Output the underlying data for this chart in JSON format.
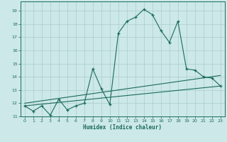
{
  "title": "",
  "xlabel": "Humidex (Indice chaleur)",
  "ylabel": "",
  "background_color": "#cce8e8",
  "grid_color": "#aacccc",
  "line_color": "#1a6b5a",
  "xlim": [
    -0.5,
    23.5
  ],
  "ylim": [
    11,
    19.7
  ],
  "yticks": [
    11,
    12,
    13,
    14,
    15,
    16,
    17,
    18,
    19
  ],
  "xticks": [
    0,
    1,
    2,
    3,
    4,
    5,
    6,
    7,
    8,
    9,
    10,
    11,
    12,
    13,
    14,
    15,
    16,
    17,
    18,
    19,
    20,
    21,
    22,
    23
  ],
  "curve1_x": [
    0,
    1,
    2,
    3,
    4,
    5,
    6,
    7,
    8,
    9,
    10,
    11,
    12,
    13,
    14,
    15,
    16,
    17,
    18,
    19,
    20,
    21,
    22,
    23
  ],
  "curve1_y": [
    11.8,
    11.4,
    11.8,
    11.1,
    12.3,
    11.5,
    11.8,
    12.0,
    14.6,
    13.1,
    11.9,
    17.3,
    18.2,
    18.5,
    19.1,
    18.7,
    17.5,
    16.6,
    18.2,
    14.6,
    14.5,
    14.0,
    13.9,
    13.3
  ],
  "curve2_x": [
    0,
    23
  ],
  "curve2_y": [
    11.8,
    13.3
  ],
  "curve3_x": [
    0,
    23
  ],
  "curve3_y": [
    12.0,
    14.1
  ]
}
